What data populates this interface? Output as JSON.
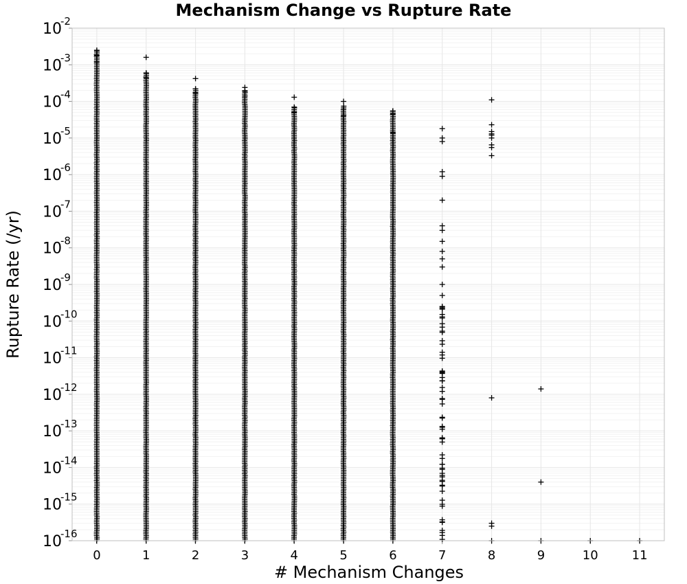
{
  "chart_data": {
    "type": "scatter",
    "title": "Mechanism Change vs Rupture Rate",
    "xlabel": "# Mechanism Changes",
    "ylabel": "Rupture Rate (/yr)",
    "xlim": [
      -0.5,
      11.5
    ],
    "ylim": [
      1e-16,
      0.01
    ],
    "y_scale": "log",
    "grid": true,
    "marker": "plus",
    "marker_color": "#000000",
    "x_ticks": [
      0,
      1,
      2,
      3,
      4,
      5,
      6,
      7,
      8,
      9,
      10,
      11
    ],
    "y_ticks": [
      {
        "base": "10",
        "exp": "-16"
      },
      {
        "base": "10",
        "exp": "-15"
      },
      {
        "base": "10",
        "exp": "-14"
      },
      {
        "base": "10",
        "exp": "-13"
      },
      {
        "base": "10",
        "exp": "-12"
      },
      {
        "base": "10",
        "exp": "-11"
      },
      {
        "base": "10",
        "exp": "-10"
      },
      {
        "base": "10",
        "exp": "-9"
      },
      {
        "base": "10",
        "exp": "-8"
      },
      {
        "base": "10",
        "exp": "-7"
      },
      {
        "base": "10",
        "exp": "-6"
      },
      {
        "base": "10",
        "exp": "-5"
      },
      {
        "base": "10",
        "exp": "-4"
      },
      {
        "base": "10",
        "exp": "-3"
      },
      {
        "base": "10",
        "exp": "-2"
      }
    ],
    "series": [
      {
        "x": 0,
        "range": [
          1e-16,
          0.0025
        ],
        "dense": true,
        "outliers": [
          0.0025,
          0.0018,
          0.0012
        ]
      },
      {
        "x": 1,
        "range": [
          1e-16,
          0.0006
        ],
        "dense": true,
        "outliers": [
          0.0016,
          0.0006,
          0.00045
        ]
      },
      {
        "x": 2,
        "range": [
          1e-16,
          0.00022
        ],
        "dense": true,
        "outliers": [
          0.00042,
          0.00022,
          0.00017
        ]
      },
      {
        "x": 3,
        "range": [
          1e-16,
          0.0002
        ],
        "dense": true,
        "outliers": [
          0.00024,
          0.00019,
          0.00014
        ]
      },
      {
        "x": 4,
        "range": [
          1e-16,
          7e-05
        ],
        "dense": true,
        "outliers": [
          0.00013,
          7e-05,
          5e-05
        ]
      },
      {
        "x": 5,
        "range": [
          1e-16,
          8e-05
        ],
        "dense": true,
        "outliers": [
          0.0001,
          6e-05,
          4e-05
        ]
      },
      {
        "x": 6,
        "range": [
          1e-16,
          5.5e-05
        ],
        "dense": true,
        "outliers": [
          5.5e-05,
          4.5e-05,
          1.4e-05
        ]
      },
      {
        "x": 7,
        "range": [
          1e-16,
          1e-05
        ],
        "dense": false,
        "outliers": [
          1.8e-05,
          1e-05,
          8e-06,
          1.2e-06,
          9e-07,
          2e-07,
          4e-08,
          3e-08,
          1.5e-08,
          8e-09,
          5e-09,
          3e-09,
          1e-09,
          5e-10,
          2.5e-10
        ]
      },
      {
        "x": 8,
        "range": [
          3.5e-06,
          1.5e-05
        ],
        "dense": false,
        "outliers": [
          0.00011,
          2.3e-05,
          1.5e-05,
          1.3e-05,
          1.2e-05,
          1e-05,
          6.5e-06,
          5.5e-06,
          3.3e-06,
          8e-13,
          3e-16,
          2.5e-16,
          1e-16
        ]
      },
      {
        "x": 9,
        "range": [
          1e-16,
          1e-16
        ],
        "dense": false,
        "outliers": [
          1.4e-12,
          4e-15,
          1e-16
        ]
      },
      {
        "x": 10,
        "range": [
          1e-16,
          1e-16
        ],
        "dense": false,
        "outliers": [
          1e-16
        ]
      },
      {
        "x": 11,
        "range": [
          1e-16,
          1e-16
        ],
        "dense": false,
        "outliers": [
          1e-16
        ]
      }
    ]
  }
}
